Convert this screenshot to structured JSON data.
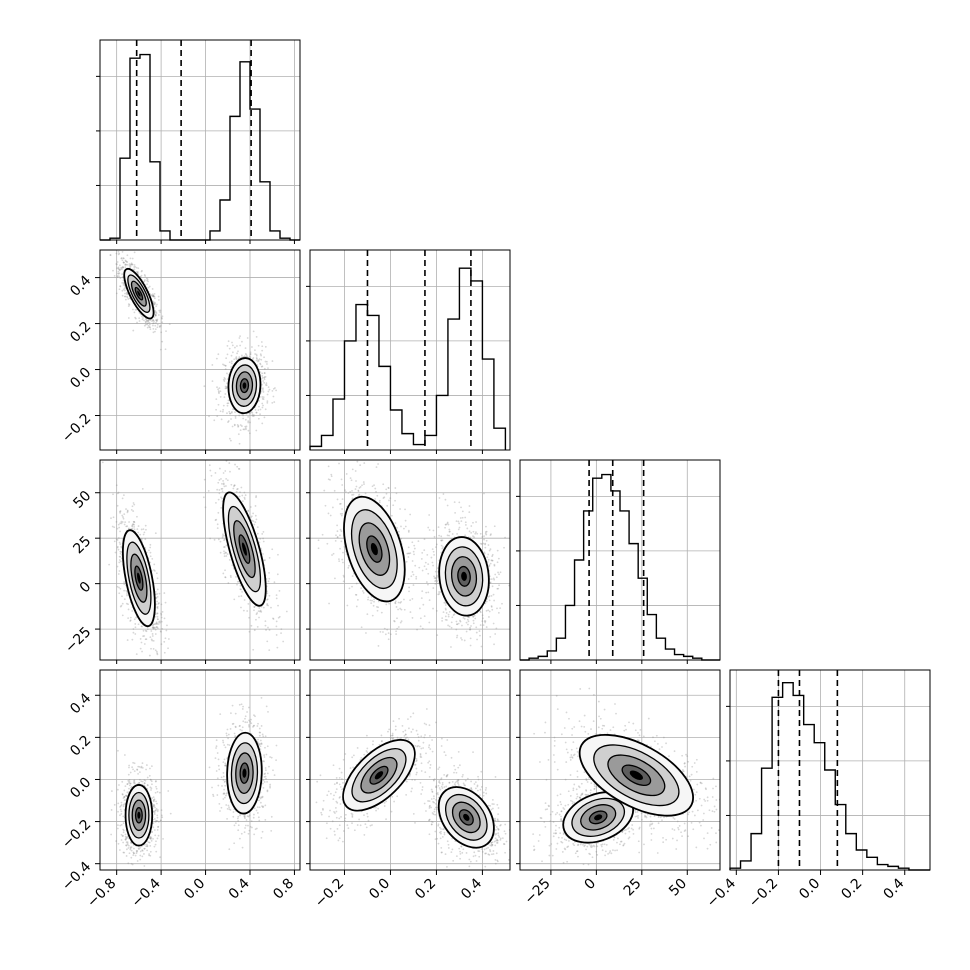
{
  "chart_data": {
    "type": "corner",
    "title": "",
    "grid": true,
    "parameters": [
      {
        "range": [
          -0.95,
          0.85
        ],
        "ticks": [
          -0.8,
          -0.4,
          0.0,
          0.4,
          0.8
        ],
        "tick_labels": [
          "−0.8",
          "−0.4",
          "0.0",
          "0.4",
          "0.8"
        ],
        "quantiles": [
          -0.62,
          -0.22,
          0.41
        ],
        "hist": {
          "edges": [
            -0.95,
            -0.86,
            -0.77,
            -0.68,
            -0.59,
            -0.5,
            -0.41,
            -0.32,
            -0.23,
            -0.14,
            -0.05,
            0.04,
            0.13,
            0.22,
            0.31,
            0.4,
            0.49,
            0.58,
            0.67,
            0.76,
            0.85
          ],
          "counts": [
            0,
            0.01,
            0.45,
            1.0,
            1.02,
            0.43,
            0.05,
            0,
            0,
            0,
            0,
            0.05,
            0.22,
            0.68,
            0.98,
            0.72,
            0.32,
            0.05,
            0.01,
            0
          ],
          "y_ticks": [
            0.3,
            0.6,
            0.9
          ]
        }
      },
      {
        "range": [
          -0.35,
          0.52
        ],
        "ticks": [
          -0.2,
          0.0,
          0.2,
          0.4
        ],
        "tick_labels": [
          "−0.2",
          "0.0",
          "0.2",
          "0.4"
        ],
        "quantiles": [
          -0.1,
          0.15,
          0.35
        ],
        "hist": {
          "edges": [
            -0.35,
            -0.3,
            -0.25,
            -0.2,
            -0.15,
            -0.1,
            -0.05,
            0.0,
            0.05,
            0.1,
            0.15,
            0.2,
            0.25,
            0.3,
            0.35,
            0.4,
            0.45,
            0.5
          ],
          "counts": [
            0.02,
            0.08,
            0.28,
            0.6,
            0.8,
            0.74,
            0.46,
            0.22,
            0.09,
            0.03,
            0.08,
            0.3,
            0.72,
            1.0,
            0.93,
            0.5,
            0.12
          ],
          "y_ticks": [
            0.3,
            0.6,
            0.9
          ]
        }
      },
      {
        "range": [
          -42,
          68
        ],
        "ticks": [
          -25,
          0,
          25,
          50
        ],
        "tick_labels": [
          "−25",
          "0",
          "25",
          "50"
        ],
        "quantiles": [
          -4,
          9,
          26
        ],
        "hist": {
          "edges": [
            -42,
            -37,
            -32,
            -27,
            -22,
            -17,
            -12,
            -7,
            -2,
            3,
            8,
            13,
            18,
            23,
            28,
            33,
            38,
            43,
            48,
            53,
            58,
            63,
            68
          ],
          "counts": [
            0,
            0.01,
            0.02,
            0.05,
            0.12,
            0.3,
            0.55,
            0.82,
            1.0,
            1.02,
            0.93,
            0.82,
            0.64,
            0.45,
            0.25,
            0.12,
            0.06,
            0.03,
            0.02,
            0.01,
            0,
            0
          ],
          "y_ticks": [
            0.3,
            0.6,
            0.9
          ]
        }
      },
      {
        "range": [
          -0.43,
          0.52
        ],
        "ticks": [
          -0.4,
          -0.2,
          0.0,
          0.2,
          0.4
        ],
        "tick_labels": [
          "−0.4",
          "−0.2",
          "0.0",
          "0.2",
          "0.4"
        ],
        "quantiles": [
          -0.2,
          -0.1,
          0.08
        ],
        "hist": {
          "edges": [
            -0.43,
            -0.38,
            -0.33,
            -0.28,
            -0.23,
            -0.18,
            -0.13,
            -0.08,
            -0.03,
            0.02,
            0.07,
            0.12,
            0.17,
            0.22,
            0.27,
            0.32,
            0.37,
            0.42,
            0.47,
            0.52
          ],
          "counts": [
            0.01,
            0.05,
            0.2,
            0.56,
            0.95,
            1.03,
            0.96,
            0.8,
            0.7,
            0.55,
            0.36,
            0.2,
            0.11,
            0.07,
            0.03,
            0.02,
            0.01,
            0,
            0
          ],
          "y_ticks": [
            0.3,
            0.6,
            0.9
          ]
        }
      }
    ],
    "joint_modes": [
      {
        "x": 1,
        "y": 0,
        "modes": [
          {
            "cx": -0.6,
            "cy": 0.33,
            "sx": 0.055,
            "sy": 0.045,
            "rho": -0.75,
            "w": 1.0
          },
          {
            "cx": 0.35,
            "cy": -0.07,
            "sx": 0.06,
            "sy": 0.05,
            "rho": 0.05,
            "w": 0.85
          }
        ]
      },
      {
        "x": 2,
        "y": 0,
        "modes": [
          {
            "cx": -0.6,
            "cy": 3,
            "sx": 0.06,
            "sy": 11,
            "rho": -0.55,
            "w": 1.0
          },
          {
            "cx": 0.35,
            "cy": 19,
            "sx": 0.08,
            "sy": 13,
            "rho": -0.7,
            "w": 0.75
          }
        ]
      },
      {
        "x": 2,
        "y": 1,
        "modes": [
          {
            "cx": -0.07,
            "cy": 19,
            "sx": 0.055,
            "sy": 12,
            "rho": -0.4,
            "w": 0.8
          },
          {
            "cx": 0.32,
            "cy": 4,
            "sx": 0.045,
            "sy": 9,
            "rho": -0.1,
            "w": 1.0
          }
        ]
      },
      {
        "x": 3,
        "y": 0,
        "modes": [
          {
            "cx": -0.6,
            "cy": -0.17,
            "sx": 0.05,
            "sy": 0.06,
            "rho": 0.0,
            "w": 1.0
          },
          {
            "cx": 0.35,
            "cy": 0.03,
            "sx": 0.065,
            "sy": 0.08,
            "rho": 0.05,
            "w": 0.8
          }
        ]
      },
      {
        "x": 3,
        "y": 1,
        "modes": [
          {
            "cx": -0.05,
            "cy": 0.02,
            "sx": 0.065,
            "sy": 0.07,
            "rho": 0.6,
            "w": 0.8
          },
          {
            "cx": 0.33,
            "cy": -0.18,
            "sx": 0.05,
            "sy": 0.06,
            "rho": -0.35,
            "w": 1.0
          }
        ]
      },
      {
        "x": 3,
        "y": 2,
        "modes": [
          {
            "cx": 1,
            "cy": -0.18,
            "sx": 8,
            "sy": 0.05,
            "rho": 0.3,
            "w": 1.0
          },
          {
            "cx": 22,
            "cy": 0.02,
            "sx": 13,
            "sy": 0.08,
            "rho": -0.55,
            "w": 0.85
          }
        ]
      }
    ]
  },
  "style": {
    "line_color": "#000000",
    "grid_color": "#b0b0b0",
    "scatter_color": "#8c8c8c",
    "density_colormap": [
      "#f6f6f6",
      "#cfcfcf",
      "#9a9a9a",
      "#5e5e5e",
      "#000000"
    ]
  }
}
